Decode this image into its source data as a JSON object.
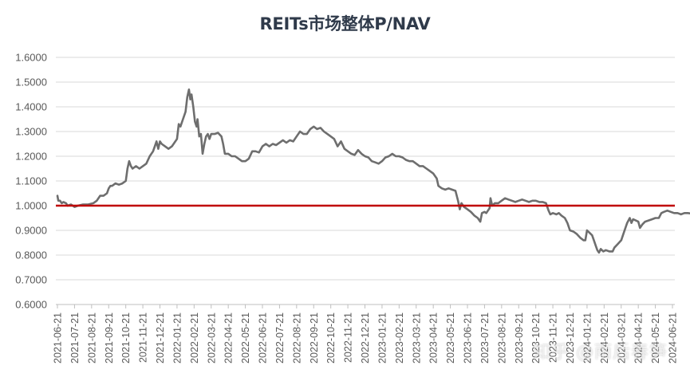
{
  "chart_data": {
    "type": "line",
    "title": "REITs市场整体P/NAV",
    "xlabel": "",
    "ylabel": "",
    "ylim": [
      0.6,
      1.6
    ],
    "yticks": [
      "1.6000",
      "1.5000",
      "1.4000",
      "1.3000",
      "1.2000",
      "1.1000",
      "1.0000",
      "0.9000",
      "0.8000",
      "0.7000",
      "0.6000"
    ],
    "grid": true,
    "legend": null,
    "categories": [
      "2021-06-21",
      "2021-07-21",
      "2021-08-21",
      "2021-09-21",
      "2021-10-21",
      "2021-11-21",
      "2021-12-21",
      "2022-01-21",
      "2022-02-21",
      "2022-03-21",
      "2022-04-21",
      "2022-05-21",
      "2022-06-21",
      "2022-07-21",
      "2022-08-21",
      "2022-09-21",
      "2022-10-21",
      "2022-11-21",
      "2022-12-21",
      "2023-01-21",
      "2023-02-21",
      "2023-03-21",
      "2023-04-21",
      "2023-05-21",
      "2023-06-21",
      "2023-07-21",
      "2023-08-21",
      "2023-09-21",
      "2023-10-21",
      "2023-11-21",
      "2023-12-21",
      "2024-01-21",
      "2024-02-21",
      "2024-03-21",
      "2024-04-21",
      "2024-05-21",
      "2024-06-21"
    ],
    "series": [
      {
        "name": "REITs市场整体P/NAV",
        "color": "#6e6e6e",
        "points": [
          [
            0.0,
            1.04
          ],
          [
            0.05,
            1.02
          ],
          [
            0.15,
            1.02
          ],
          [
            0.25,
            1.01
          ],
          [
            0.35,
            1.015
          ],
          [
            0.5,
            1.01
          ],
          [
            0.6,
            1.0
          ],
          [
            0.8,
            1.005
          ],
          [
            1.0,
            0.995
          ],
          [
            1.2,
            1.0
          ],
          [
            1.5,
            1.005
          ],
          [
            1.8,
            1.005
          ],
          [
            2.1,
            1.01
          ],
          [
            2.3,
            1.02
          ],
          [
            2.5,
            1.04
          ],
          [
            2.7,
            1.04
          ],
          [
            2.9,
            1.05
          ],
          [
            3.0,
            1.07
          ],
          [
            3.1,
            1.08
          ],
          [
            3.2,
            1.08
          ],
          [
            3.4,
            1.09
          ],
          [
            3.6,
            1.085
          ],
          [
            3.8,
            1.09
          ],
          [
            4.0,
            1.1
          ],
          [
            4.1,
            1.15
          ],
          [
            4.2,
            1.18
          ],
          [
            4.3,
            1.16
          ],
          [
            4.4,
            1.15
          ],
          [
            4.6,
            1.16
          ],
          [
            4.8,
            1.15
          ],
          [
            5.0,
            1.16
          ],
          [
            5.2,
            1.17
          ],
          [
            5.4,
            1.2
          ],
          [
            5.6,
            1.22
          ],
          [
            5.8,
            1.26
          ],
          [
            5.9,
            1.23
          ],
          [
            6.0,
            1.26
          ],
          [
            6.1,
            1.25
          ],
          [
            6.3,
            1.24
          ],
          [
            6.5,
            1.23
          ],
          [
            6.7,
            1.24
          ],
          [
            6.9,
            1.26
          ],
          [
            7.0,
            1.27
          ],
          [
            7.1,
            1.33
          ],
          [
            7.2,
            1.32
          ],
          [
            7.35,
            1.35
          ],
          [
            7.5,
            1.38
          ],
          [
            7.6,
            1.44
          ],
          [
            7.7,
            1.47
          ],
          [
            7.78,
            1.43
          ],
          [
            7.85,
            1.45
          ],
          [
            7.95,
            1.4
          ],
          [
            8.05,
            1.34
          ],
          [
            8.15,
            1.32
          ],
          [
            8.2,
            1.35
          ],
          [
            8.3,
            1.28
          ],
          [
            8.4,
            1.29
          ],
          [
            8.5,
            1.21
          ],
          [
            8.6,
            1.25
          ],
          [
            8.7,
            1.28
          ],
          [
            8.8,
            1.29
          ],
          [
            8.9,
            1.27
          ],
          [
            9.0,
            1.29
          ],
          [
            9.2,
            1.29
          ],
          [
            9.4,
            1.295
          ],
          [
            9.6,
            1.28
          ],
          [
            9.7,
            1.25
          ],
          [
            9.8,
            1.21
          ],
          [
            10.0,
            1.21
          ],
          [
            10.2,
            1.2
          ],
          [
            10.4,
            1.2
          ],
          [
            10.6,
            1.19
          ],
          [
            10.8,
            1.18
          ],
          [
            11.0,
            1.18
          ],
          [
            11.2,
            1.19
          ],
          [
            11.4,
            1.22
          ],
          [
            11.6,
            1.22
          ],
          [
            11.8,
            1.215
          ],
          [
            12.0,
            1.24
          ],
          [
            12.2,
            1.25
          ],
          [
            12.4,
            1.24
          ],
          [
            12.6,
            1.25
          ],
          [
            12.8,
            1.245
          ],
          [
            13.0,
            1.255
          ],
          [
            13.2,
            1.265
          ],
          [
            13.4,
            1.255
          ],
          [
            13.6,
            1.265
          ],
          [
            13.8,
            1.26
          ],
          [
            14.0,
            1.28
          ],
          [
            14.2,
            1.3
          ],
          [
            14.4,
            1.29
          ],
          [
            14.6,
            1.29
          ],
          [
            14.8,
            1.31
          ],
          [
            15.0,
            1.32
          ],
          [
            15.2,
            1.31
          ],
          [
            15.4,
            1.315
          ],
          [
            15.6,
            1.3
          ],
          [
            15.8,
            1.29
          ],
          [
            16.0,
            1.28
          ],
          [
            16.2,
            1.27
          ],
          [
            16.4,
            1.24
          ],
          [
            16.6,
            1.26
          ],
          [
            16.8,
            1.23
          ],
          [
            17.0,
            1.22
          ],
          [
            17.2,
            1.21
          ],
          [
            17.4,
            1.205
          ],
          [
            17.6,
            1.225
          ],
          [
            17.8,
            1.21
          ],
          [
            18.0,
            1.2
          ],
          [
            18.2,
            1.195
          ],
          [
            18.4,
            1.18
          ],
          [
            18.6,
            1.175
          ],
          [
            18.8,
            1.17
          ],
          [
            19.0,
            1.18
          ],
          [
            19.2,
            1.195
          ],
          [
            19.4,
            1.2
          ],
          [
            19.6,
            1.21
          ],
          [
            19.8,
            1.2
          ],
          [
            20.0,
            1.2
          ],
          [
            20.2,
            1.195
          ],
          [
            20.4,
            1.185
          ],
          [
            20.6,
            1.18
          ],
          [
            20.8,
            1.18
          ],
          [
            21.0,
            1.17
          ],
          [
            21.2,
            1.16
          ],
          [
            21.4,
            1.16
          ],
          [
            21.6,
            1.15
          ],
          [
            21.8,
            1.14
          ],
          [
            22.0,
            1.13
          ],
          [
            22.2,
            1.11
          ],
          [
            22.3,
            1.08
          ],
          [
            22.5,
            1.07
          ],
          [
            22.7,
            1.065
          ],
          [
            22.9,
            1.07
          ],
          [
            23.1,
            1.065
          ],
          [
            23.3,
            1.06
          ],
          [
            23.45,
            1.02
          ],
          [
            23.55,
            0.985
          ],
          [
            23.65,
            1.01
          ],
          [
            23.8,
            0.995
          ],
          [
            24.0,
            0.985
          ],
          [
            24.2,
            0.975
          ],
          [
            24.4,
            0.96
          ],
          [
            24.6,
            0.95
          ],
          [
            24.75,
            0.935
          ],
          [
            24.85,
            0.97
          ],
          [
            25.0,
            0.975
          ],
          [
            25.1,
            0.97
          ],
          [
            25.2,
            0.98
          ],
          [
            25.3,
            0.99
          ],
          [
            25.35,
            1.03
          ],
          [
            25.45,
            1.0
          ],
          [
            25.6,
            1.01
          ],
          [
            25.8,
            1.01
          ],
          [
            26.0,
            1.02
          ],
          [
            26.2,
            1.03
          ],
          [
            26.4,
            1.025
          ],
          [
            26.6,
            1.02
          ],
          [
            26.8,
            1.015
          ],
          [
            27.0,
            1.02
          ],
          [
            27.2,
            1.025
          ],
          [
            27.4,
            1.02
          ],
          [
            27.6,
            1.015
          ],
          [
            27.8,
            1.02
          ],
          [
            28.0,
            1.02
          ],
          [
            28.2,
            1.015
          ],
          [
            28.4,
            1.015
          ],
          [
            28.6,
            1.01
          ],
          [
            28.75,
            0.98
          ],
          [
            28.85,
            0.965
          ],
          [
            29.0,
            0.97
          ],
          [
            29.2,
            0.965
          ],
          [
            29.35,
            0.97
          ],
          [
            29.5,
            0.96
          ],
          [
            29.7,
            0.95
          ],
          [
            29.85,
            0.93
          ],
          [
            30.0,
            0.9
          ],
          [
            30.2,
            0.895
          ],
          [
            30.4,
            0.885
          ],
          [
            30.6,
            0.87
          ],
          [
            30.8,
            0.86
          ],
          [
            30.9,
            0.86
          ],
          [
            31.0,
            0.9
          ],
          [
            31.15,
            0.89
          ],
          [
            31.3,
            0.88
          ],
          [
            31.4,
            0.86
          ],
          [
            31.5,
            0.84
          ],
          [
            31.6,
            0.82
          ],
          [
            31.7,
            0.81
          ],
          [
            31.8,
            0.825
          ],
          [
            31.95,
            0.815
          ],
          [
            32.1,
            0.82
          ],
          [
            32.3,
            0.815
          ],
          [
            32.5,
            0.815
          ],
          [
            32.6,
            0.83
          ],
          [
            32.8,
            0.845
          ],
          [
            33.0,
            0.86
          ],
          [
            33.1,
            0.88
          ],
          [
            33.2,
            0.9
          ],
          [
            33.35,
            0.93
          ],
          [
            33.5,
            0.95
          ],
          [
            33.6,
            0.93
          ],
          [
            33.7,
            0.945
          ],
          [
            33.85,
            0.94
          ],
          [
            34.0,
            0.935
          ],
          [
            34.1,
            0.91
          ],
          [
            34.25,
            0.925
          ],
          [
            34.4,
            0.935
          ],
          [
            34.6,
            0.94
          ],
          [
            34.8,
            0.945
          ],
          [
            35.0,
            0.95
          ],
          [
            35.2,
            0.95
          ],
          [
            35.35,
            0.97
          ],
          [
            35.5,
            0.975
          ],
          [
            35.7,
            0.98
          ],
          [
            35.9,
            0.975
          ],
          [
            36.1,
            0.97
          ],
          [
            36.3,
            0.97
          ],
          [
            36.5,
            0.965
          ],
          [
            36.7,
            0.97
          ],
          [
            36.9,
            0.97
          ],
          [
            37.1,
            0.968
          ],
          [
            37.2,
            0.975
          ],
          [
            37.22,
            0.98
          ]
        ]
      }
    ],
    "reference_line": {
      "value": 1.0,
      "color": "#c00000"
    },
    "watermark": "知乎 @雨后春笋"
  }
}
